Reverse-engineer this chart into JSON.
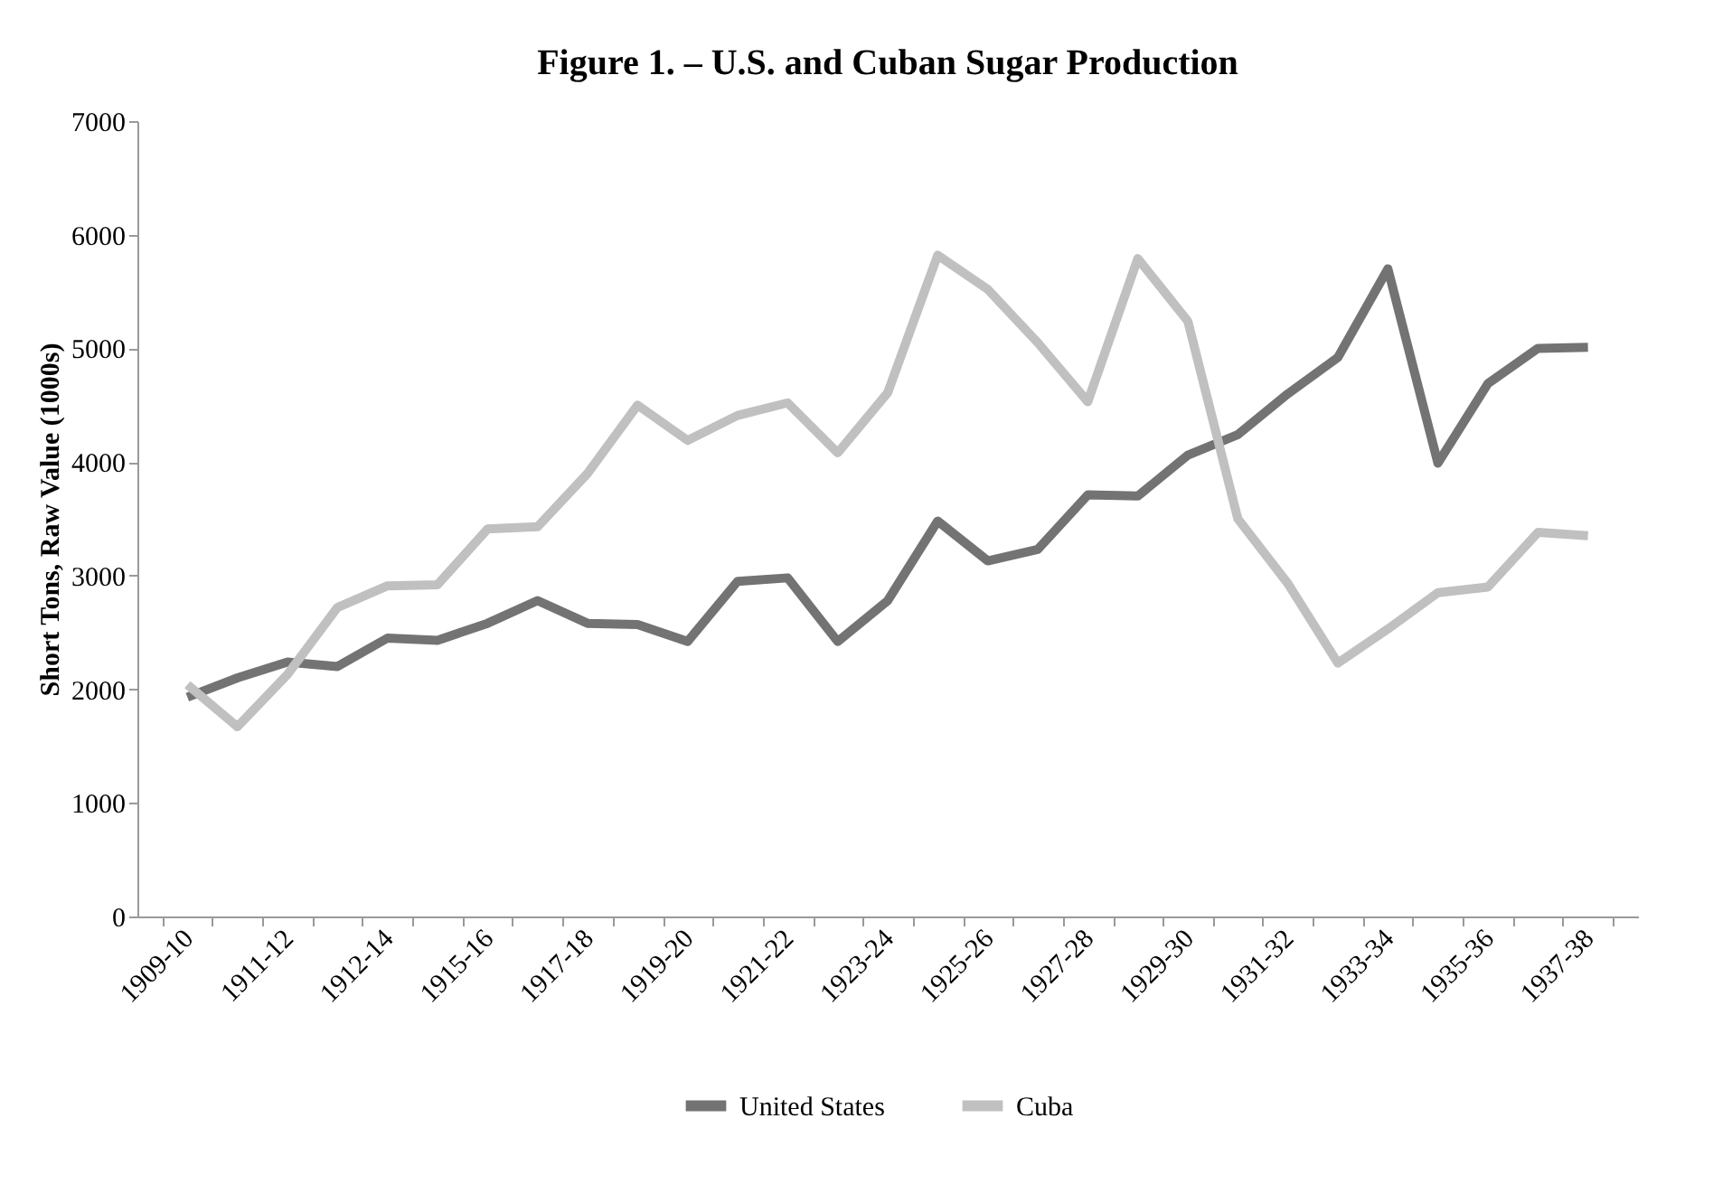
{
  "chart_data": {
    "type": "line",
    "title": "Figure 1. – U.S. and Cuban Sugar Production",
    "ylabel": "Short Tons, Raw Value (1000s)",
    "categories": [
      "1909-10",
      null,
      "1911-12",
      null,
      "1912-14",
      null,
      "1915-16",
      null,
      "1917-18",
      null,
      "1919-20",
      null,
      "1921-22",
      null,
      "1923-24",
      null,
      "1925-26",
      null,
      "1927-28",
      null,
      "1929-30",
      null,
      "1931-32",
      null,
      "1933-34",
      null,
      "1935-36",
      null,
      "1937-38"
    ],
    "series": [
      {
        "name": "United States",
        "color": "#737373",
        "values": [
          1930,
          2100,
          2240,
          2200,
          2450,
          2430,
          2580,
          2780,
          2580,
          2570,
          2420,
          2950,
          2980,
          2420,
          2780,
          3480,
          3130,
          3230,
          3710,
          3700,
          4060,
          4240,
          4600,
          4920,
          5700,
          3990,
          4690,
          5000,
          5010
        ]
      },
      {
        "name": "Cuba",
        "color": "#c0c0c0",
        "values": [
          2040,
          1670,
          2130,
          2720,
          2910,
          2920,
          3410,
          3430,
          3900,
          4500,
          4190,
          4410,
          4520,
          4080,
          4610,
          5820,
          5520,
          5050,
          4530,
          5790,
          5240,
          3500,
          2930,
          2230,
          2530,
          2850,
          2900,
          3380,
          3350
        ]
      }
    ],
    "ylim": [
      0,
      7000
    ],
    "yticks": [
      0,
      1000,
      2000,
      3000,
      4000,
      5000,
      6000,
      7000
    ],
    "grid": false,
    "legend": "bottom",
    "marker": "none",
    "line_style": "solid"
  }
}
